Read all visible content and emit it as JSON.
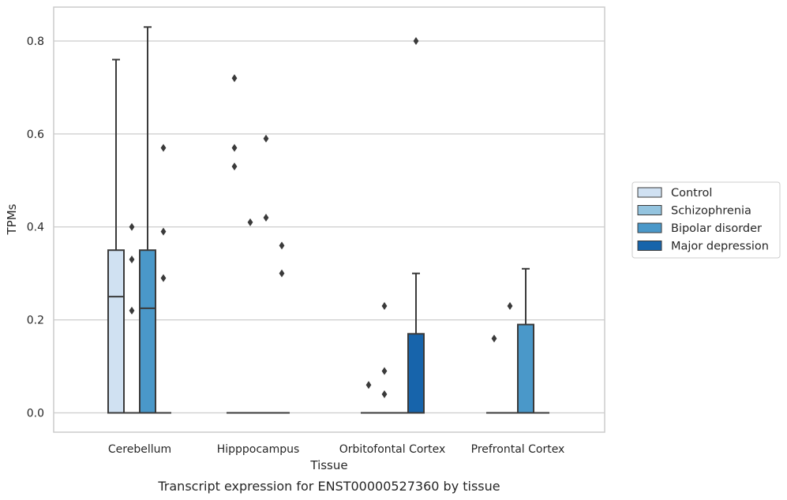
{
  "chart_data": {
    "type": "box",
    "title": "",
    "caption": "Transcript expression for ENST00000527360 by tissue",
    "xlabel": "Tissue",
    "ylabel": "TPMs",
    "ylim": [
      -0.04,
      0.875
    ],
    "yticks": [
      0.0,
      0.2,
      0.4,
      0.6,
      0.8
    ],
    "ytick_labels": [
      "0.0",
      "0.2",
      "0.4",
      "0.6",
      "0.8"
    ],
    "grid": "horizontal",
    "legend_position": "center-right",
    "categories": [
      "Cerebellum",
      "Hipppocampus",
      "Orbitofontal Cortex",
      "Prefrontal Cortex"
    ],
    "series": [
      {
        "name": "Control",
        "color": "#d0e1f2",
        "boxes": [
          {
            "category": "Cerebellum",
            "q1": 0.0,
            "median": 0.25,
            "q3": 0.35,
            "whisker_low": 0.0,
            "whisker_high": 0.76,
            "outliers": []
          },
          {
            "category": "Hipppocampus",
            "q1": 0.0,
            "median": 0.0,
            "q3": 0.0,
            "whisker_low": 0.0,
            "whisker_high": 0.0,
            "outliers": [
              0.72,
              0.57,
              0.53
            ]
          },
          {
            "category": "Orbitofontal Cortex",
            "q1": 0.0,
            "median": 0.0,
            "q3": 0.0,
            "whisker_low": 0.0,
            "whisker_high": 0.0,
            "outliers": [
              0.06
            ]
          },
          {
            "category": "Prefrontal Cortex",
            "q1": 0.0,
            "median": 0.0,
            "q3": 0.0,
            "whisker_low": 0.0,
            "whisker_high": 0.0,
            "outliers": [
              0.16
            ]
          }
        ]
      },
      {
        "name": "Schizophrenia",
        "color": "#94c4df",
        "boxes": [
          {
            "category": "Cerebellum",
            "q1": 0.0,
            "median": 0.0,
            "q3": 0.0,
            "whisker_low": 0.0,
            "whisker_high": 0.0,
            "outliers": [
              0.4,
              0.33,
              0.22
            ]
          },
          {
            "category": "Hipppocampus",
            "q1": 0.0,
            "median": 0.0,
            "q3": 0.0,
            "whisker_low": 0.0,
            "whisker_high": 0.0,
            "outliers": [
              0.41
            ]
          },
          {
            "category": "Orbitofontal Cortex",
            "q1": 0.0,
            "median": 0.0,
            "q3": 0.0,
            "whisker_low": 0.0,
            "whisker_high": 0.0,
            "outliers": [
              0.23,
              0.09,
              0.04
            ]
          },
          {
            "category": "Prefrontal Cortex",
            "q1": 0.0,
            "median": 0.0,
            "q3": 0.0,
            "whisker_low": 0.0,
            "whisker_high": 0.0,
            "outliers": [
              0.23
            ]
          }
        ]
      },
      {
        "name": "Bipolar disorder",
        "color": "#4a98c9",
        "boxes": [
          {
            "category": "Cerebellum",
            "q1": 0.0,
            "median": 0.225,
            "q3": 0.35,
            "whisker_low": 0.0,
            "whisker_high": 0.83,
            "outliers": []
          },
          {
            "category": "Hipppocampus",
            "q1": 0.0,
            "median": 0.0,
            "q3": 0.0,
            "whisker_low": 0.0,
            "whisker_high": 0.0,
            "outliers": [
              0.59,
              0.42
            ]
          },
          {
            "category": "Orbitofontal Cortex",
            "q1": 0.0,
            "median": 0.0,
            "q3": 0.0,
            "whisker_low": 0.0,
            "whisker_high": 0.0,
            "outliers": []
          },
          {
            "category": "Prefrontal Cortex",
            "q1": 0.0,
            "median": 0.0,
            "q3": 0.19,
            "whisker_low": 0.0,
            "whisker_high": 0.31,
            "outliers": []
          }
        ]
      },
      {
        "name": "Major depression",
        "color": "#1764ab",
        "boxes": [
          {
            "category": "Cerebellum",
            "q1": 0.0,
            "median": 0.0,
            "q3": 0.0,
            "whisker_low": 0.0,
            "whisker_high": 0.0,
            "outliers": [
              0.57,
              0.39,
              0.29
            ]
          },
          {
            "category": "Hipppocampus",
            "q1": 0.0,
            "median": 0.0,
            "q3": 0.0,
            "whisker_low": 0.0,
            "whisker_high": 0.0,
            "outliers": [
              0.36,
              0.3
            ]
          },
          {
            "category": "Orbitofontal Cortex",
            "q1": 0.0,
            "median": 0.0,
            "q3": 0.17,
            "whisker_low": 0.0,
            "whisker_high": 0.3,
            "outliers": [
              0.8
            ]
          },
          {
            "category": "Prefrontal Cortex",
            "q1": 0.0,
            "median": 0.0,
            "q3": 0.0,
            "whisker_low": 0.0,
            "whisker_high": 0.0,
            "outliers": []
          }
        ]
      }
    ]
  }
}
